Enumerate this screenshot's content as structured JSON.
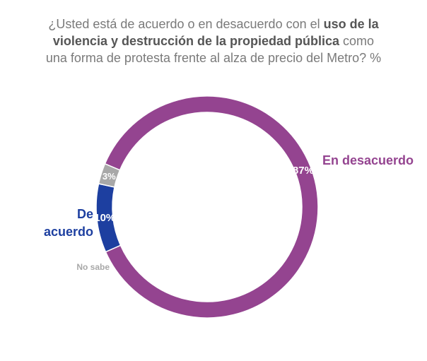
{
  "chart_data": {
    "type": "donut",
    "title_parts": [
      {
        "text": "¿Usted está de acuerdo o en desacuerdo con el ",
        "em": false
      },
      {
        "text": "uso de la violencia y destrucción de la propiedad pública",
        "em": true
      },
      {
        "text": " como una forma de protesta frente al alza de precio del Metro? %",
        "em": false
      }
    ],
    "categories": [
      "En desacuerdo",
      "De acuerdo",
      "No sabe"
    ],
    "values": [
      87,
      10,
      3
    ],
    "value_labels": [
      "87%",
      "10%",
      "3%"
    ],
    "colors": [
      "#944490",
      "#1d3fa0",
      "#a8a8a8"
    ],
    "unit": "%"
  }
}
